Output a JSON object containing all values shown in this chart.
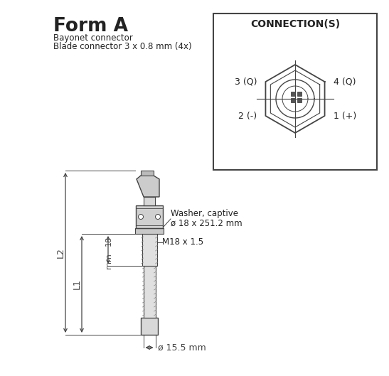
{
  "title": "Form A",
  "subtitle1": "Bayonet connector",
  "subtitle2": "Blade connector 3 x 0.8 mm (4x)",
  "bg_color": "#ffffff",
  "line_color": "#444444",
  "text_color": "#222222",
  "conn_title": "CONNECTION(S)",
  "conn_labels": {
    "3Q": "3 (Q)",
    "4Q": "4 (Q)",
    "2m": "2 (-)",
    "1p": "1 (+)"
  },
  "washer_text1": "Washer, captive",
  "washer_text2": "ø 18 x 251.2 mm",
  "m18_text": "M18 x 1.5",
  "dim_18": "18",
  "dim_18_unit": "mm",
  "dim_15": "ø 15.5 mm",
  "dim_L1": "L1",
  "dim_L2": "L2"
}
